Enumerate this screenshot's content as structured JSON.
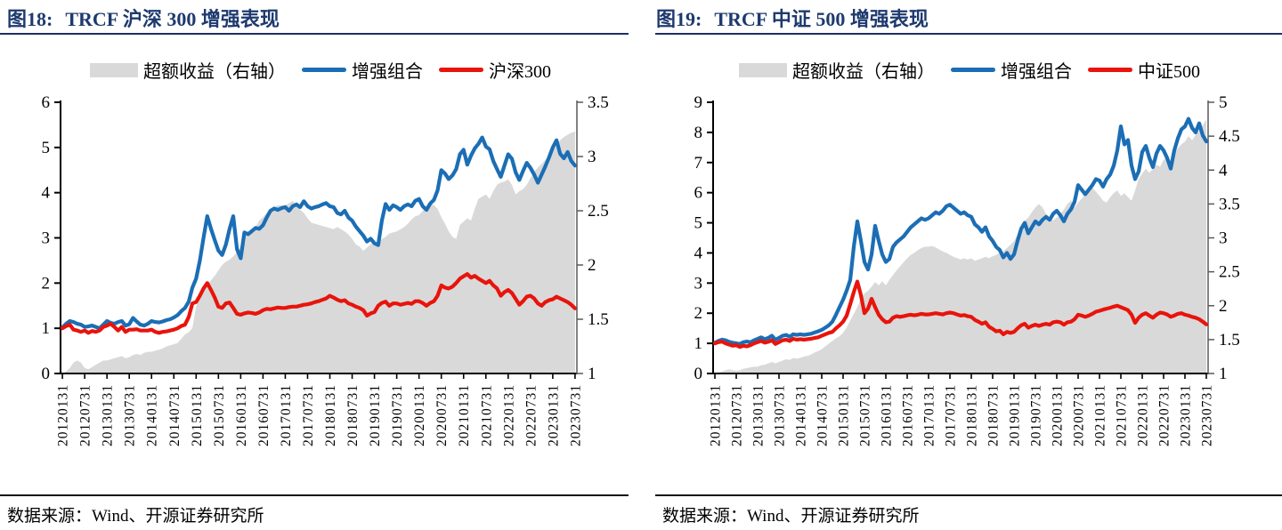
{
  "colors": {
    "title": "#1e3a6e",
    "enhanced_line": "#1b6eb5",
    "benchmark_line": "#e8140c",
    "excess_area": "#d9d9d9",
    "axis": "#000000",
    "right_axis": "#595959"
  },
  "footer": {
    "source_label": "数据来源：Wind、开源证券研究所"
  },
  "charts": [
    {
      "figure_label": "图18:",
      "title": "TRCF 沪深 300 增强表现",
      "chart_data": {
        "type": "line+area",
        "x_labels": [
          "20120131",
          "20120731",
          "20130131",
          "20130731",
          "20140131",
          "20140731",
          "20150131",
          "20150731",
          "20160131",
          "20160731",
          "20170131",
          "20170731",
          "20180131",
          "20180731",
          "20190131",
          "20190731",
          "20200131",
          "20200731",
          "20210131",
          "20210731",
          "20220131",
          "20220731",
          "20230131",
          "20230731"
        ],
        "left_axis": {
          "min": 0,
          "max": 6,
          "step": 1
        },
        "right_axis": {
          "min": 1,
          "max": 3.5,
          "step": 0.5
        },
        "series": [
          {
            "name": "超额收益（右轴）",
            "role": "excess",
            "type": "area",
            "axis": "right",
            "color_key": "excess_area",
            "values": [
              1.0,
              1.02,
              1.05,
              1.1,
              1.12,
              1.1,
              1.05,
              1.04,
              1.06,
              1.08,
              1.1,
              1.12,
              1.12,
              1.13,
              1.14,
              1.15,
              1.16,
              1.14,
              1.15,
              1.17,
              1.18,
              1.17,
              1.19,
              1.2,
              1.2,
              1.21,
              1.22,
              1.23,
              1.25,
              1.26,
              1.27,
              1.28,
              1.32,
              1.36,
              1.38,
              1.42,
              1.62,
              1.7,
              1.78,
              1.82,
              1.86,
              1.9,
              1.95,
              2.0,
              2.03,
              2.05,
              2.08,
              2.12,
              2.17,
              2.25,
              2.31,
              2.3,
              2.35,
              2.41,
              2.44,
              2.48,
              2.51,
              2.53,
              2.55,
              2.55,
              2.55,
              2.57,
              2.59,
              2.55,
              2.51,
              2.48,
              2.43,
              2.39,
              2.38,
              2.37,
              2.36,
              2.35,
              2.34,
              2.33,
              2.35,
              2.33,
              2.31,
              2.28,
              2.24,
              2.19,
              2.17,
              2.13,
              2.16,
              2.19,
              2.22,
              2.2,
              2.24,
              2.26,
              2.29,
              2.3,
              2.31,
              2.33,
              2.35,
              2.38,
              2.42,
              2.45,
              2.46,
              2.5,
              2.53,
              2.57,
              2.55,
              2.52,
              2.44,
              2.38,
              2.31,
              2.26,
              2.24,
              2.37,
              2.4,
              2.43,
              2.41,
              2.52,
              2.61,
              2.63,
              2.65,
              2.61,
              2.68,
              2.74,
              2.76,
              2.77,
              2.79,
              2.74,
              2.65,
              2.68,
              2.7,
              2.74,
              2.8,
              2.86,
              2.9,
              2.93,
              2.97,
              3.0,
              3.06,
              3.1,
              3.15,
              3.18,
              3.2,
              3.22,
              3.23
            ]
          },
          {
            "name": "增强组合",
            "role": "enhanced",
            "type": "line",
            "axis": "left",
            "color_key": "enhanced_line",
            "values": [
              1.02,
              1.1,
              1.16,
              1.14,
              1.1,
              1.08,
              1.03,
              1.04,
              1.06,
              1.03,
              1.0,
              1.08,
              1.16,
              1.12,
              1.1,
              1.14,
              1.16,
              1.06,
              1.09,
              1.23,
              1.15,
              1.08,
              1.06,
              1.1,
              1.16,
              1.14,
              1.13,
              1.15,
              1.18,
              1.2,
              1.24,
              1.29,
              1.38,
              1.45,
              1.59,
              1.9,
              2.1,
              2.5,
              3.0,
              3.48,
              3.2,
              2.95,
              2.72,
              2.62,
              2.85,
              3.2,
              3.48,
              2.75,
              2.55,
              3.12,
              3.08,
              3.15,
              3.22,
              3.2,
              3.28,
              3.45,
              3.6,
              3.65,
              3.62,
              3.66,
              3.68,
              3.6,
              3.7,
              3.74,
              3.68,
              3.81,
              3.7,
              3.65,
              3.68,
              3.7,
              3.74,
              3.77,
              3.7,
              3.68,
              3.55,
              3.52,
              3.6,
              3.45,
              3.38,
              3.25,
              3.15,
              3.05,
              2.92,
              2.98,
              2.88,
              2.84,
              3.38,
              3.75,
              3.62,
              3.72,
              3.68,
              3.62,
              3.7,
              3.74,
              3.7,
              3.82,
              3.86,
              3.7,
              3.62,
              3.76,
              3.84,
              4.05,
              4.5,
              4.42,
              4.3,
              4.38,
              4.52,
              4.85,
              4.95,
              4.62,
              4.82,
              4.98,
              5.08,
              5.22,
              5.02,
              4.96,
              4.7,
              4.52,
              4.35,
              4.6,
              4.85,
              4.75,
              4.45,
              4.28,
              4.48,
              4.66,
              4.55,
              4.4,
              4.22,
              4.4,
              4.58,
              4.78,
              5.0,
              5.16,
              4.86,
              4.76,
              4.9,
              4.7,
              4.6
            ]
          },
          {
            "name": "沪深300",
            "role": "benchmark",
            "type": "line",
            "axis": "left",
            "color_key": "benchmark_line",
            "values": [
              1.0,
              1.05,
              1.08,
              0.97,
              0.95,
              0.92,
              0.95,
              0.9,
              0.94,
              0.92,
              0.95,
              1.03,
              1.06,
              1.1,
              1.03,
              0.95,
              1.03,
              0.92,
              0.97,
              0.97,
              0.98,
              0.95,
              0.95,
              0.95,
              0.97,
              0.92,
              0.9,
              0.92,
              0.93,
              0.95,
              0.97,
              1.0,
              1.05,
              1.08,
              1.25,
              1.55,
              1.58,
              1.72,
              1.88,
              2.0,
              1.85,
              1.68,
              1.48,
              1.45,
              1.55,
              1.57,
              1.45,
              1.32,
              1.3,
              1.33,
              1.35,
              1.34,
              1.32,
              1.35,
              1.4,
              1.43,
              1.42,
              1.44,
              1.46,
              1.45,
              1.45,
              1.47,
              1.48,
              1.48,
              1.5,
              1.52,
              1.53,
              1.55,
              1.58,
              1.6,
              1.63,
              1.66,
              1.72,
              1.68,
              1.63,
              1.6,
              1.62,
              1.55,
              1.52,
              1.48,
              1.45,
              1.4,
              1.28,
              1.33,
              1.36,
              1.5,
              1.56,
              1.59,
              1.5,
              1.55,
              1.55,
              1.52,
              1.54,
              1.56,
              1.54,
              1.6,
              1.6,
              1.56,
              1.5,
              1.56,
              1.6,
              1.72,
              1.95,
              1.9,
              1.88,
              1.92,
              2.0,
              2.1,
              2.15,
              2.2,
              2.12,
              2.16,
              2.1,
              2.05,
              2.0,
              2.05,
              1.95,
              1.88,
              1.72,
              1.8,
              1.85,
              1.78,
              1.65,
              1.52,
              1.6,
              1.7,
              1.72,
              1.66,
              1.55,
              1.5,
              1.58,
              1.62,
              1.64,
              1.7,
              1.66,
              1.62,
              1.58,
              1.52,
              1.44
            ]
          }
        ]
      }
    },
    {
      "figure_label": "图19:",
      "title": "TRCF 中证 500 增强表现",
      "chart_data": {
        "type": "line+area",
        "x_labels": [
          "20120131",
          "20120731",
          "20130131",
          "20130731",
          "20140131",
          "20140731",
          "20150131",
          "20150731",
          "20160131",
          "20160731",
          "20170131",
          "20170731",
          "20180131",
          "20180731",
          "20190131",
          "20190731",
          "20200131",
          "20200731",
          "20210131",
          "20210731",
          "20220131",
          "20220731",
          "20230131",
          "20230731"
        ],
        "left_axis": {
          "min": 0,
          "max": 9,
          "step": 1
        },
        "right_axis": {
          "min": 1,
          "max": 5,
          "step": 0.5
        },
        "series": [
          {
            "name": "超额收益（右轴）",
            "role": "excess",
            "type": "area",
            "axis": "right",
            "color_key": "excess_area",
            "values": [
              1.0,
              1.01,
              1.03,
              1.05,
              1.06,
              1.05,
              1.04,
              1.05,
              1.07,
              1.08,
              1.09,
              1.1,
              1.1,
              1.12,
              1.13,
              1.15,
              1.17,
              1.15,
              1.17,
              1.19,
              1.21,
              1.2,
              1.23,
              1.22,
              1.23,
              1.25,
              1.26,
              1.28,
              1.31,
              1.33,
              1.36,
              1.4,
              1.44,
              1.48,
              1.52,
              1.55,
              1.6,
              1.68,
              1.78,
              1.88,
              1.98,
              2.1,
              2.18,
              2.22,
              2.28,
              2.35,
              2.3,
              2.36,
              2.3,
              2.38,
              2.45,
              2.52,
              2.58,
              2.64,
              2.7,
              2.75,
              2.78,
              2.82,
              2.85,
              2.87,
              2.87,
              2.88,
              2.86,
              2.83,
              2.8,
              2.78,
              2.75,
              2.72,
              2.7,
              2.68,
              2.7,
              2.68,
              2.7,
              2.66,
              2.68,
              2.7,
              2.72,
              2.7,
              2.73,
              2.75,
              2.78,
              2.8,
              2.85,
              2.9,
              2.95,
              3.05,
              3.15,
              3.25,
              3.3,
              3.38,
              3.45,
              3.5,
              3.45,
              3.35,
              3.28,
              3.26,
              3.3,
              3.36,
              3.42,
              3.5,
              3.55,
              3.45,
              3.52,
              3.58,
              3.64,
              3.7,
              3.74,
              3.68,
              3.62,
              3.55,
              3.52,
              3.6,
              3.66,
              3.7,
              3.62,
              3.66,
              3.6,
              3.55,
              3.7,
              3.87,
              3.95,
              4.02,
              3.96,
              4.02,
              4.08,
              4.05,
              4.15,
              4.2,
              4.12,
              4.25,
              4.32,
              4.38,
              4.42,
              4.5,
              4.44,
              4.52,
              4.58,
              4.66,
              4.75
            ]
          },
          {
            "name": "增强组合",
            "role": "enhanced",
            "type": "line",
            "axis": "left",
            "color_key": "enhanced_line",
            "values": [
              1.02,
              1.08,
              1.12,
              1.1,
              1.05,
              1.02,
              1.0,
              0.98,
              1.04,
              1.06,
              1.04,
              1.1,
              1.15,
              1.2,
              1.14,
              1.18,
              1.25,
              1.12,
              1.18,
              1.25,
              1.28,
              1.22,
              1.3,
              1.28,
              1.3,
              1.28,
              1.3,
              1.32,
              1.36,
              1.4,
              1.45,
              1.52,
              1.6,
              1.72,
              1.95,
              2.2,
              2.45,
              2.75,
              3.1,
              4.2,
              5.05,
              4.4,
              3.7,
              3.45,
              3.95,
              4.9,
              4.4,
              3.95,
              3.7,
              3.8,
              4.2,
              4.35,
              4.45,
              4.55,
              4.7,
              4.85,
              4.95,
              5.05,
              5.15,
              5.1,
              5.15,
              5.25,
              5.35,
              5.3,
              5.4,
              5.55,
              5.6,
              5.5,
              5.4,
              5.3,
              5.35,
              5.25,
              5.2,
              4.95,
              4.85,
              4.7,
              4.85,
              4.55,
              4.4,
              4.2,
              4.1,
              3.85,
              4.0,
              3.8,
              3.95,
              4.4,
              4.8,
              5.0,
              4.65,
              4.85,
              5.05,
              4.95,
              5.1,
              5.2,
              5.1,
              5.3,
              5.4,
              5.25,
              5.05,
              5.3,
              5.45,
              5.7,
              6.25,
              6.1,
              5.95,
              6.1,
              6.25,
              6.45,
              6.4,
              6.2,
              6.45,
              6.6,
              6.9,
              7.4,
              8.2,
              7.6,
              7.75,
              6.9,
              6.45,
              6.7,
              7.35,
              7.55,
              7.15,
              6.85,
              7.3,
              7.55,
              7.4,
              7.15,
              6.8,
              7.4,
              7.8,
              8.1,
              8.2,
              8.45,
              8.15,
              8.0,
              8.3,
              7.9,
              7.7
            ]
          },
          {
            "name": "中证500",
            "role": "benchmark",
            "type": "line",
            "axis": "left",
            "color_key": "benchmark_line",
            "values": [
              1.0,
              1.04,
              1.06,
              1.0,
              0.96,
              0.92,
              0.94,
              0.88,
              0.92,
              0.9,
              0.94,
              1.0,
              1.04,
              1.08,
              1.02,
              1.05,
              1.1,
              0.98,
              1.04,
              1.1,
              1.12,
              1.08,
              1.15,
              1.12,
              1.14,
              1.12,
              1.14,
              1.15,
              1.18,
              1.2,
              1.25,
              1.3,
              1.35,
              1.38,
              1.5,
              1.6,
              1.72,
              1.92,
              2.3,
              2.7,
              3.05,
              2.6,
              2.0,
              2.15,
              2.48,
              2.2,
              1.95,
              1.8,
              1.7,
              1.72,
              1.85,
              1.9,
              1.88,
              1.9,
              1.93,
              1.95,
              1.93,
              1.95,
              1.98,
              1.96,
              1.96,
              1.98,
              2.0,
              1.98,
              1.96,
              2.0,
              2.02,
              2.0,
              1.96,
              1.92,
              1.94,
              1.9,
              1.88,
              1.78,
              1.72,
              1.65,
              1.7,
              1.55,
              1.48,
              1.4,
              1.42,
              1.3,
              1.38,
              1.35,
              1.38,
              1.5,
              1.6,
              1.65,
              1.52,
              1.58,
              1.62,
              1.58,
              1.62,
              1.65,
              1.62,
              1.7,
              1.72,
              1.7,
              1.62,
              1.7,
              1.72,
              1.8,
              1.95,
              1.92,
              1.88,
              1.92,
              1.98,
              2.05,
              2.08,
              2.12,
              2.15,
              2.18,
              2.22,
              2.25,
              2.2,
              2.15,
              2.1,
              1.95,
              1.68,
              1.85,
              1.95,
              2.0,
              1.92,
              1.85,
              1.95,
              2.02,
              2.0,
              1.96,
              1.88,
              1.92,
              1.98,
              2.0,
              1.95,
              1.92,
              1.88,
              1.85,
              1.8,
              1.72,
              1.63
            ]
          }
        ]
      }
    }
  ]
}
